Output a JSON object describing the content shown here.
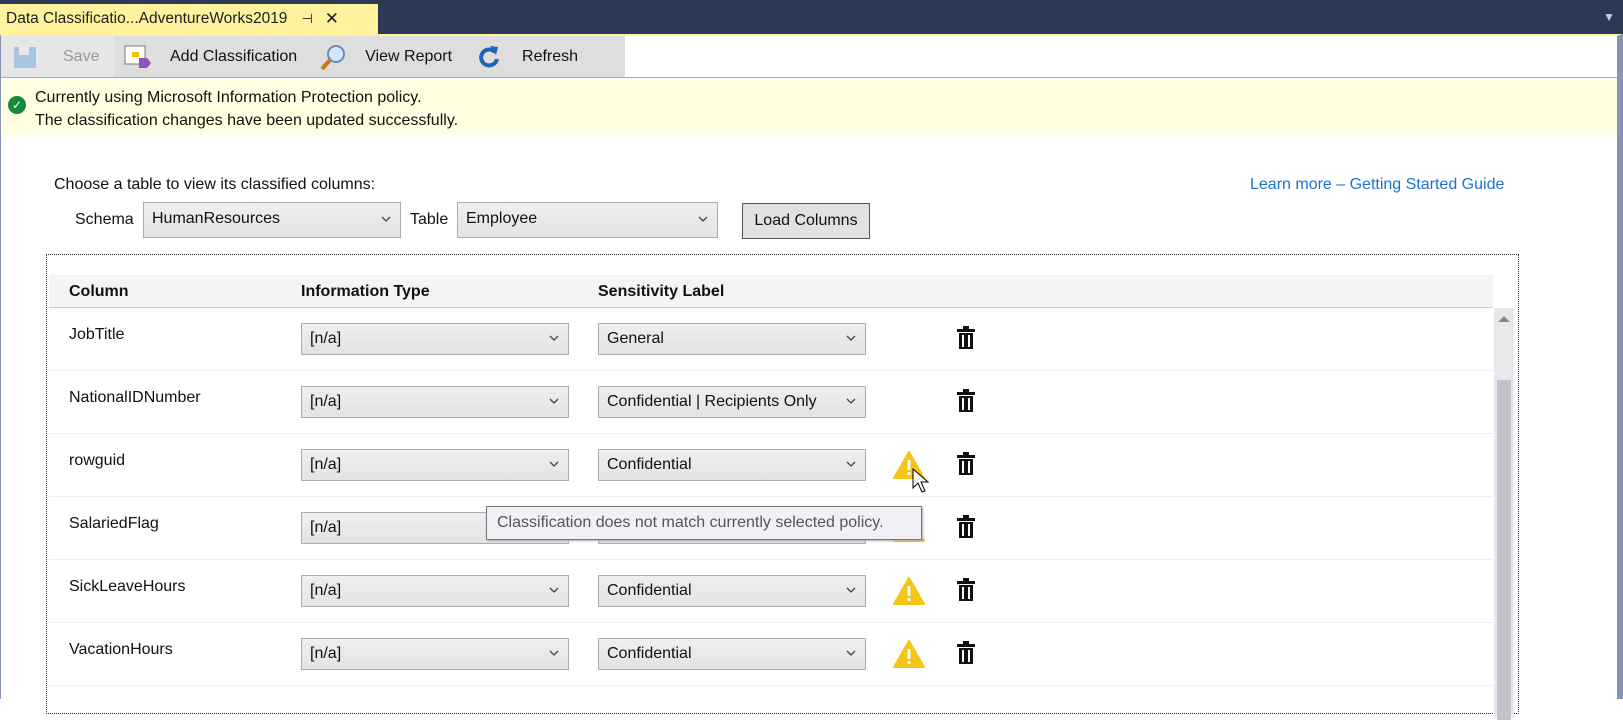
{
  "tab": {
    "title": "Data Classificatio...AdventureWorks2019",
    "pin_icon": "pin-icon",
    "close_icon": "close-icon"
  },
  "toolbar": {
    "save": "Save",
    "add_classification": "Add Classification",
    "view_report": "View Report",
    "refresh": "Refresh"
  },
  "banner": {
    "line1": "Currently using Microsoft Information Protection policy.",
    "line2": "The classification changes have been updated successfully."
  },
  "chooser": {
    "prompt": "Choose a table to view its classified columns:",
    "schema_label": "Schema",
    "schema_value": "HumanResources",
    "table_label": "Table",
    "table_value": "Employee",
    "load_button": "Load Columns",
    "learn_more": "Learn more – Getting Started Guide"
  },
  "grid": {
    "headers": {
      "column": "Column",
      "info_type": "Information Type",
      "sensitivity": "Sensitivity Label"
    },
    "rows": [
      {
        "column": "JobTitle",
        "info_type": "[n/a]",
        "sensitivity": "General",
        "warning": false
      },
      {
        "column": "NationalIDNumber",
        "info_type": "[n/a]",
        "sensitivity": "Confidential | Recipients Only",
        "warning": false
      },
      {
        "column": "rowguid",
        "info_type": "[n/a]",
        "sensitivity": "Confidential",
        "warning": true
      },
      {
        "column": "SalariedFlag",
        "info_type": "[n/a]",
        "sensitivity": "",
        "warning": true
      },
      {
        "column": "SickLeaveHours",
        "info_type": "[n/a]",
        "sensitivity": "Confidential",
        "warning": true
      },
      {
        "column": "VacationHours",
        "info_type": "[n/a]",
        "sensitivity": "Confidential",
        "warning": true
      }
    ]
  },
  "tooltip": "Classification does not match currently selected policy.",
  "colors": {
    "titlebar": "#2b3954",
    "tab": "#fff29d",
    "banner": "#ffffe1",
    "link": "#1a73d0",
    "warning": "#f5c518",
    "success": "#168a3c"
  }
}
